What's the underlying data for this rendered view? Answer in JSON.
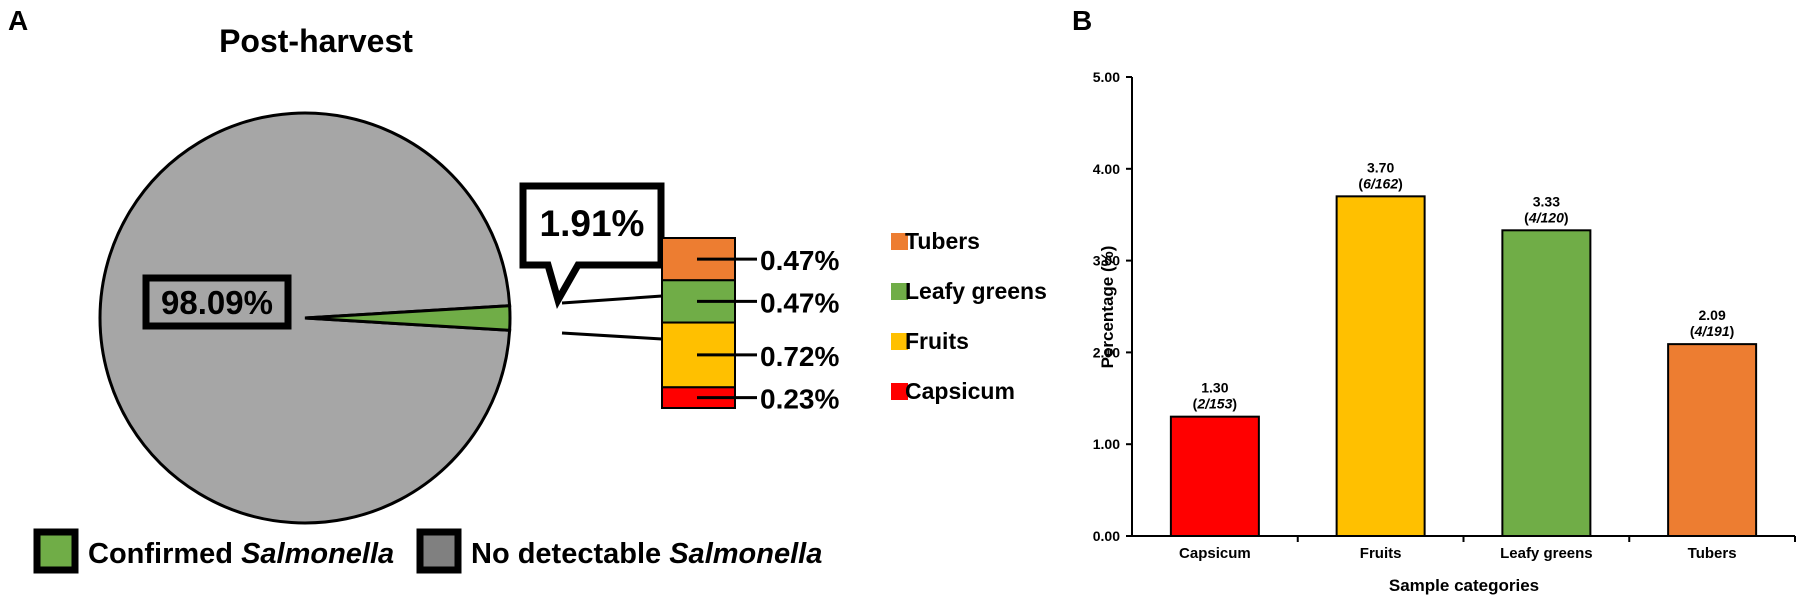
{
  "panel_a": {
    "letter": "A",
    "chart_data": {
      "type": "pie",
      "title": "Post-harvest",
      "slices": [
        {
          "name": "No detectable Salmonella",
          "value": 98.09,
          "label": "98.09%",
          "color": "#a6a6a6"
        },
        {
          "name": "Confirmed Salmonella",
          "value": 1.91,
          "label": "1.91%",
          "color": "#70ad47"
        }
      ],
      "breakdown": [
        {
          "category": "Tubers",
          "value": 0.47,
          "label": "0.47%",
          "color": "#ed7d31"
        },
        {
          "category": "Leafy greens",
          "value": 0.47,
          "label": "0.47%",
          "color": "#70ad47"
        },
        {
          "category": "Fruits",
          "value": 0.72,
          "label": "0.72%",
          "color": "#ffc000"
        },
        {
          "category": "Capsicum",
          "value": 0.23,
          "label": "0.23%",
          "color": "#ff0000"
        }
      ],
      "legend": [
        {
          "prefix": "Confirmed ",
          "italic": "Salmonella",
          "color": "#70ad47"
        },
        {
          "prefix": "No detectable ",
          "italic": "Salmonella",
          "color": "#808080"
        }
      ]
    }
  },
  "panel_b": {
    "letter": "B",
    "chart_data": {
      "type": "bar",
      "categories": [
        "Capsicum",
        "Fruits",
        "Leafy greens",
        "Tubers"
      ],
      "values": [
        1.3,
        3.7,
        3.33,
        2.09
      ],
      "value_labels": [
        "1.30",
        "3.70",
        "3.33",
        "2.09"
      ],
      "count_labels": [
        "2/153",
        "6/162",
        "4/120",
        "4/191"
      ],
      "colors": [
        "#ff0000",
        "#ffc000",
        "#70ad47",
        "#ed7d31"
      ],
      "xlabel": "Sample categories",
      "ylabel": "Percentage (%)",
      "ylim": [
        0,
        5
      ],
      "yticks": [
        "0.00",
        "1.00",
        "2.00",
        "3.00",
        "4.00",
        "5.00"
      ]
    }
  }
}
